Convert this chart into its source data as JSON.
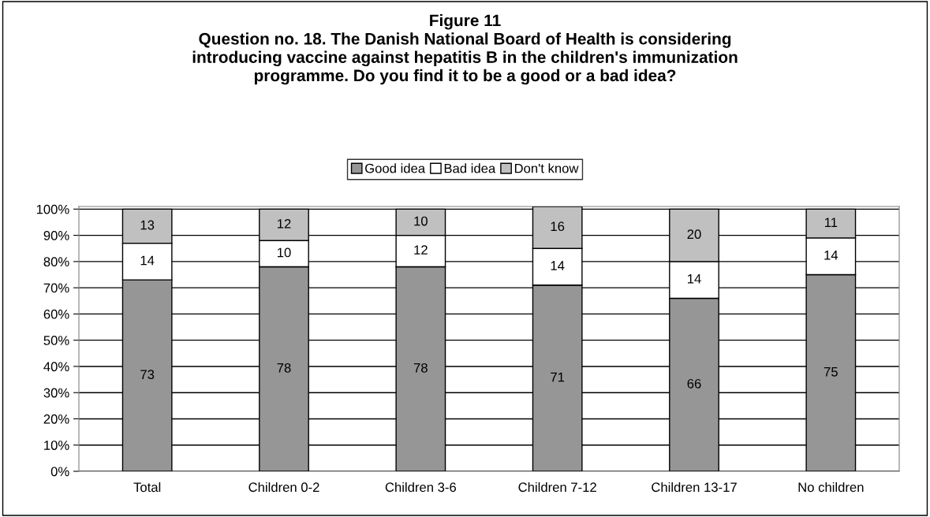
{
  "chart_data": {
    "type": "bar",
    "stacked": true,
    "title": "Figure 11\nQuestion no. 18. The Danish National Board of Health is considering\nintroducing vaccine against hepatitis B in the children's immunization\nprogramme. Do you find it to be a good or a bad idea?",
    "categories": [
      "Total",
      "Children 0-2",
      "Children 3-6",
      "Children 7-12",
      "Children 13-17",
      "No children"
    ],
    "series": [
      {
        "name": "Good idea",
        "color": "#969696",
        "values": [
          73,
          78,
          78,
          71,
          66,
          75
        ]
      },
      {
        "name": "Bad idea",
        "color": "#ffffff",
        "values": [
          14,
          10,
          12,
          14,
          14,
          14
        ]
      },
      {
        "name": "Don't know",
        "color": "#c0c0c0",
        "values": [
          13,
          12,
          10,
          16,
          20,
          11
        ]
      }
    ],
    "ylim": [
      0,
      101
    ],
    "yticks": [
      {
        "value": 0,
        "label": "0%"
      },
      {
        "value": 10,
        "label": "10%"
      },
      {
        "value": 20,
        "label": "20%"
      },
      {
        "value": 30,
        "label": "30%"
      },
      {
        "value": 40,
        "label": "40%"
      },
      {
        "value": 50,
        "label": "50%"
      },
      {
        "value": 60,
        "label": "60%"
      },
      {
        "value": 70,
        "label": "70%"
      },
      {
        "value": 80,
        "label": "80%"
      },
      {
        "value": 90,
        "label": "90%"
      },
      {
        "value": 100,
        "label": "100%"
      }
    ],
    "grid": "y",
    "legend": "top",
    "data_labels": true
  }
}
